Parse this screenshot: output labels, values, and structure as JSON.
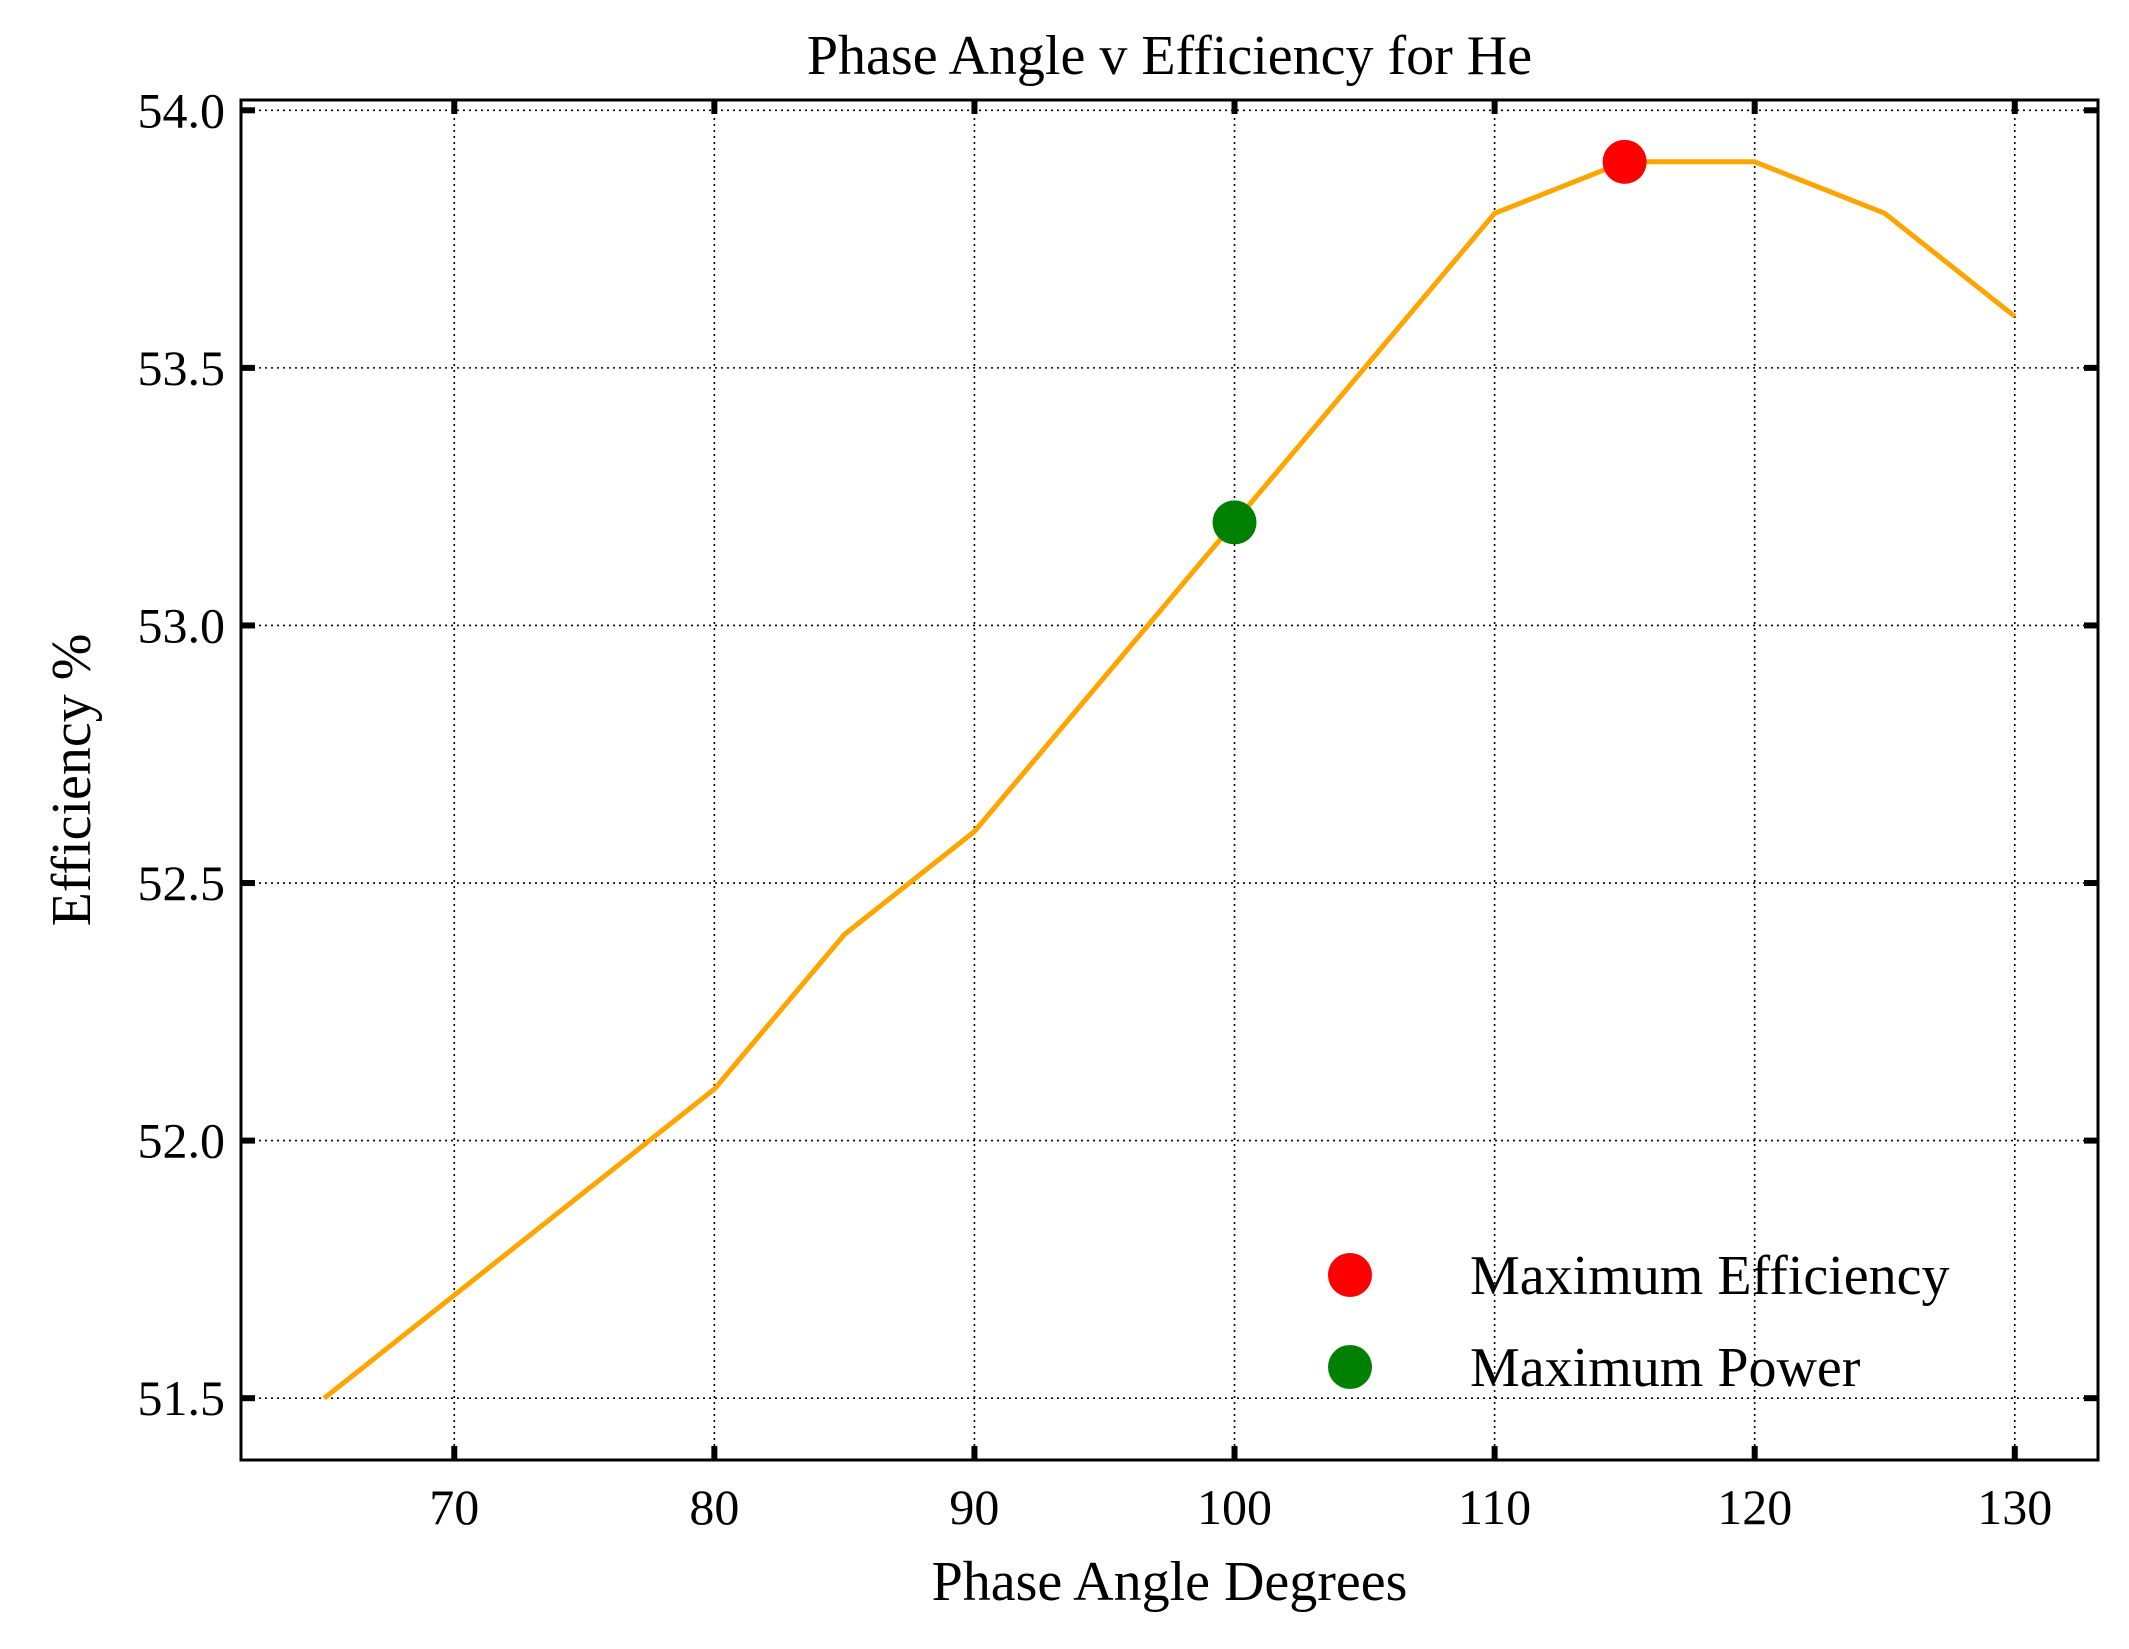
{
  "chart_data": {
    "type": "line",
    "title": "Phase Angle v Efficiency for He",
    "xlabel": "Phase Angle Degrees",
    "ylabel": "Efficiency %",
    "xlim": [
      61.8,
      133.2
    ],
    "ylim": [
      51.38,
      54.02
    ],
    "grid": true,
    "x_ticks": [
      70,
      80,
      90,
      100,
      110,
      120,
      130
    ],
    "x_tick_labels": [
      "70",
      "80",
      "90",
      "100",
      "110",
      "120",
      "130"
    ],
    "y_ticks": [
      51.5,
      52.0,
      52.5,
      53.0,
      53.5,
      54.0
    ],
    "y_tick_labels": [
      "51.5",
      "52.0",
      "52.5",
      "53.0",
      "53.5",
      "54.0"
    ],
    "series": [
      {
        "color": "#ffa500",
        "x": [
          65,
          70,
          75,
          80,
          85,
          90,
          95,
          100,
          105,
          110,
          115,
          120,
          125,
          130
        ],
        "y": [
          51.5,
          51.7,
          51.9,
          52.1,
          52.4,
          52.6,
          52.9,
          53.2,
          53.5,
          53.8,
          53.9,
          53.9,
          53.8,
          53.6
        ]
      }
    ],
    "markers": [
      {
        "name": "Maximum Efficiency",
        "x": 115,
        "y": 53.9,
        "color": "#ff0000"
      },
      {
        "name": "Maximum Power",
        "x": 100,
        "y": 53.2,
        "color": "#008000"
      }
    ],
    "legend": {
      "position": "lower-right",
      "entries": [
        {
          "label": "Maximum Efficiency",
          "color": "#ff0000"
        },
        {
          "label": "Maximum Power",
          "color": "#008000"
        }
      ]
    }
  }
}
